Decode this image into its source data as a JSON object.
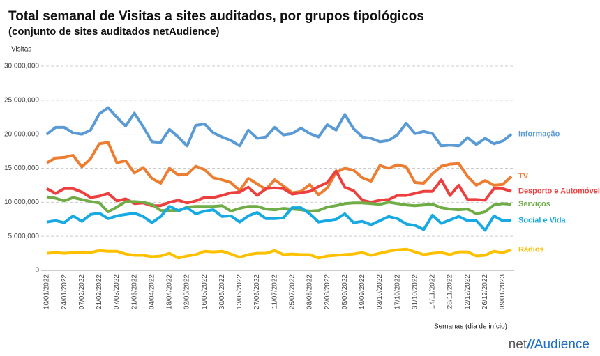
{
  "chart_data": {
    "type": "line",
    "title": "Total semanal de Visitas a sites auditados, por grupos tipológicos",
    "subtitle": "(conjunto de sites auditados netAudience)",
    "y_label": "Visitas",
    "x_label": "Semanas  (dia de início)",
    "logo": {
      "prefix": "net",
      "slashes": "//",
      "name": "Audience"
    },
    "grid": true,
    "ylim": [
      0,
      30000000
    ],
    "yticks": [
      0,
      {
        "value": 5000000,
        "label": "5,000,000"
      },
      {
        "value": 10000000,
        "label": "10,000,000"
      },
      {
        "value": 15000000,
        "label": "15,000,000"
      },
      {
        "value": 20000000,
        "label": "20,000,000"
      },
      {
        "value": 25000000,
        "label": "25,000,000"
      },
      {
        "value": 30000000,
        "label": "30,000,000"
      }
    ],
    "categories": [
      "10/01/2022",
      null,
      "24/01/2022",
      null,
      "07/02/2022",
      null,
      "21/02/2022",
      null,
      "07/03/2022",
      null,
      "21/03/2022",
      null,
      "04/04/2022",
      null,
      "18/04/2022",
      null,
      "02/05/2022",
      null,
      "16/05/2022",
      null,
      "30/05/2022",
      null,
      "13/06/2022",
      null,
      "27/06/2022",
      null,
      "11/07/2022",
      null,
      "25/07/2022",
      null,
      "08/08/2022",
      null,
      "22/08/2022",
      null,
      "05/09/2022",
      null,
      "19/09/2022",
      null,
      "03/10/2022",
      null,
      "17/10/2022",
      null,
      "31/10/2022",
      null,
      "14/11/2022",
      null,
      "28/11/2022",
      null,
      "12/12/2022",
      null,
      "26/12/2022",
      null,
      "09/01/2023",
      null
    ],
    "series": [
      {
        "name": "Informação",
        "color": "#5b9bd5",
        "values": [
          20000000,
          21000000,
          21000000,
          20200000,
          20000000,
          20600000,
          23000000,
          23900000,
          22500000,
          21200000,
          23100000,
          21100000,
          18900000,
          18800000,
          20700000,
          19600000,
          18300000,
          21300000,
          21500000,
          20200000,
          19600000,
          19100000,
          18300000,
          20600000,
          19400000,
          19600000,
          21000000,
          19900000,
          20100000,
          20900000,
          20100000,
          19600000,
          21400000,
          20600000,
          22900000,
          20800000,
          19600000,
          19400000,
          18900000,
          19100000,
          19900000,
          21600000,
          20100000,
          20400000,
          20100000,
          18300000,
          18400000,
          18300000,
          19500000,
          18500000,
          19400000,
          18600000,
          19000000,
          20000000
        ]
      },
      {
        "name": "TV",
        "color": "#ed7d31",
        "values": [
          15800000,
          16500000,
          16600000,
          16900000,
          15200000,
          16400000,
          18600000,
          18800000,
          15800000,
          16100000,
          14300000,
          15100000,
          13500000,
          12800000,
          15000000,
          14000000,
          14100000,
          15300000,
          14800000,
          13600000,
          13300000,
          12900000,
          11700000,
          13500000,
          12700000,
          11900000,
          13300000,
          12400000,
          11400000,
          11600000,
          12600000,
          11100000,
          12100000,
          14400000,
          15000000,
          14700000,
          13600000,
          13100000,
          15400000,
          15000000,
          15500000,
          15200000,
          12900000,
          12800000,
          14200000,
          15300000,
          15600000,
          15700000,
          13800000,
          12500000,
          13200000,
          12500000,
          12600000,
          13800000
        ]
      },
      {
        "name": "Desporto e Automóveis",
        "color": "#ee3f3f",
        "values": [
          12000000,
          11300000,
          12000000,
          12000000,
          11500000,
          10700000,
          10900000,
          11300000,
          10200000,
          10500000,
          9800000,
          9900000,
          9500000,
          9500000,
          10000000,
          10300000,
          9900000,
          10200000,
          10700000,
          10700000,
          11000000,
          11400000,
          11500000,
          12200000,
          11000000,
          12000000,
          12100000,
          12000000,
          11200000,
          11400000,
          11600000,
          12300000,
          12900000,
          14600000,
          12200000,
          11700000,
          10300000,
          10000000,
          10300000,
          10400000,
          11000000,
          11000000,
          11300000,
          11600000,
          11600000,
          13300000,
          11000000,
          12500000,
          10400000,
          10400000,
          10300000,
          12000000,
          12000000,
          11600000
        ]
      },
      {
        "name": "Serviços",
        "color": "#70ad47",
        "values": [
          10800000,
          10600000,
          10200000,
          10700000,
          10400000,
          10100000,
          9900000,
          8600000,
          9300000,
          10100000,
          10100000,
          10000000,
          9700000,
          8800000,
          8800000,
          8700000,
          9300000,
          9400000,
          9400000,
          9400000,
          9500000,
          8700000,
          9100000,
          9400000,
          9400000,
          9000000,
          8900000,
          9100000,
          9000000,
          8900000,
          8700000,
          8800000,
          9300000,
          9500000,
          9800000,
          9900000,
          9900000,
          9800000,
          9700000,
          10000000,
          9800000,
          9600000,
          9500000,
          9600000,
          9700000,
          9200000,
          9000000,
          8900000,
          9000000,
          8300000,
          8600000,
          9600000,
          9800000,
          9700000
        ]
      },
      {
        "name": "Social e Vida",
        "color": "#17a9e1",
        "values": [
          7100000,
          7300000,
          7000000,
          8000000,
          7200000,
          8200000,
          8400000,
          7600000,
          8000000,
          8200000,
          8400000,
          7900000,
          7000000,
          7900000,
          9400000,
          8800000,
          9200000,
          8300000,
          8700000,
          8900000,
          7900000,
          8000000,
          7100000,
          8000000,
          8500000,
          7600000,
          7600000,
          7700000,
          9200000,
          9200000,
          8300000,
          7100000,
          7300000,
          7500000,
          8300000,
          7000000,
          7200000,
          6700000,
          7300000,
          7900000,
          7600000,
          6800000,
          6600000,
          6000000,
          8100000,
          6900000,
          7400000,
          7900000,
          7300000,
          7300000,
          5900000,
          8000000,
          7300000,
          7300000
        ]
      },
      {
        "name": "Rádios",
        "color": "#ffc000",
        "values": [
          2500000,
          2600000,
          2500000,
          2600000,
          2600000,
          2600000,
          2900000,
          2800000,
          2800000,
          2400000,
          2200000,
          2200000,
          2000000,
          2100000,
          2500000,
          1800000,
          2100000,
          2300000,
          2800000,
          2700000,
          2800000,
          2400000,
          1900000,
          2300000,
          2500000,
          2500000,
          2900000,
          2300000,
          2400000,
          2300000,
          2300000,
          1800000,
          2100000,
          2200000,
          2300000,
          2400000,
          2600000,
          2200000,
          2500000,
          2800000,
          3000000,
          3100000,
          2700000,
          2300000,
          2500000,
          2600000,
          2300000,
          2700000,
          2700000,
          2100000,
          2200000,
          2800000,
          2600000,
          3000000
        ]
      }
    ]
  }
}
